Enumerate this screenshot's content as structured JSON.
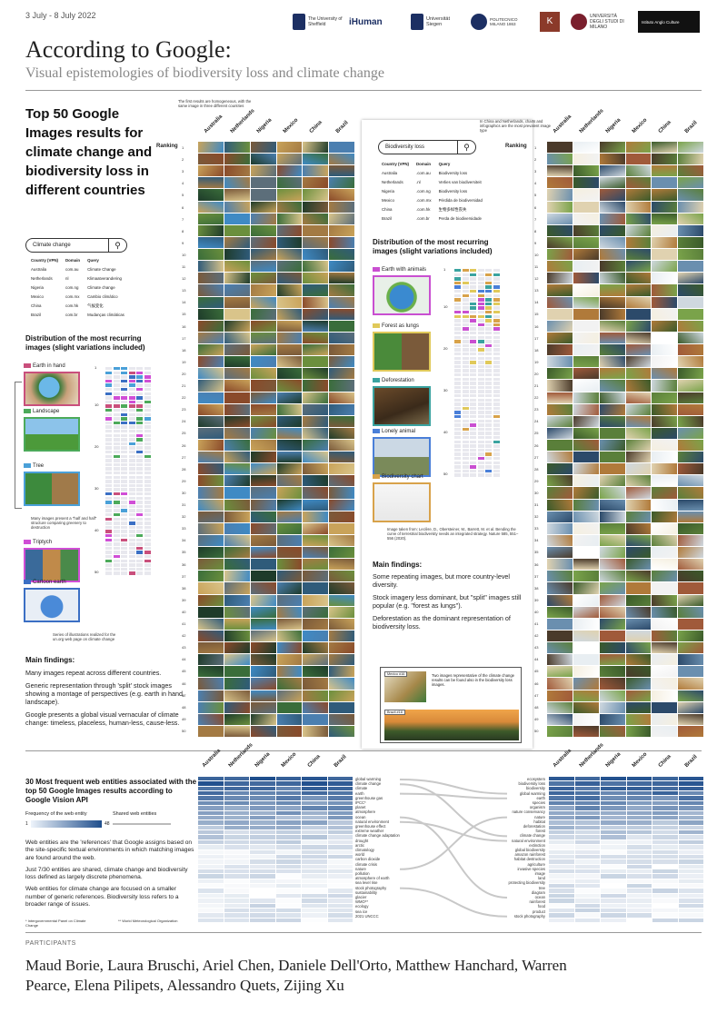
{
  "header": {
    "date": "3 July - 8 July 2022",
    "logos": [
      "The University of Sheffield",
      "iHuman",
      "Universität Siegen",
      "POLITECNICO MILANO 1863",
      "K",
      "UNIVERSITÀ DEGLI STUDI DI MILANO",
      "Istituto Anglo Culture"
    ],
    "title": "According to Google:",
    "subtitle": "Visual epistemologies of biodiversity loss and climate change"
  },
  "left": {
    "heading": "Top 50 Google Images results for climate change and biodiversity loss in different countries",
    "search_value": "Climate change",
    "table_headers": [
      "Country (VPN)",
      "Domain",
      "Query"
    ],
    "table_rows": [
      [
        "Australia",
        "com.au",
        "Climate Change"
      ],
      [
        "Netherlands",
        "nl",
        "Klimaatverandering"
      ],
      [
        "Nigeria",
        "com.ng",
        "Climate change"
      ],
      [
        "Mexico",
        "com.mx",
        "Cambio climático"
      ],
      [
        "China",
        "com.hk",
        "气候变化"
      ],
      [
        "Brazil",
        "com.br",
        "Mudanças climáticas"
      ]
    ],
    "distribution_heading": "Distribution of the most recurring images (slight variations included)",
    "categories": [
      "Earth in hand",
      "Landscape",
      "Tree",
      "Triptych",
      "Cartoon earth"
    ],
    "category_colors": [
      "#c94f7c",
      "#4caa5a",
      "#4aa0d8",
      "#d04ed6",
      "#3b6fc4"
    ],
    "note_split": "Many images present a \"half and half\" structure comparing greenery to destruction",
    "note_cartoon": "Series of illustrations realized for the un.org web page on climate change",
    "dist_ticks": [
      "1",
      "10",
      "20",
      "30",
      "40",
      "50"
    ],
    "findings_heading": "Main findings:",
    "findings": [
      "Many images repeat across different countries.",
      "Generic representation through 'split' stock images showing a montage of perspectives (e.g. earth in hand, landscape).",
      "Google presents a global visual vernacular of climate change: timeless, placeless, human-less, cause-less."
    ]
  },
  "cc_grid": {
    "note": "The first results are homogeneous, with the same image in three different countries",
    "ranking_label": "Ranking",
    "countries": [
      "Australia",
      "Netherlands",
      "Nigeria",
      "Mexico",
      "China",
      "Brazil"
    ],
    "ranks": [
      "1",
      "2",
      "3",
      "4",
      "5",
      "6",
      "7",
      "8",
      "9",
      "10",
      "11",
      "12",
      "13",
      "14",
      "15",
      "16",
      "17",
      "18",
      "19",
      "20",
      "21",
      "22",
      "23",
      "24",
      "25",
      "26",
      "27",
      "28",
      "29",
      "30",
      "31",
      "32",
      "33",
      "34",
      "35",
      "36",
      "37",
      "38",
      "39",
      "40",
      "41",
      "42",
      "43",
      "44",
      "45",
      "46",
      "47",
      "48",
      "49",
      "50"
    ]
  },
  "bio": {
    "search_value": "Biodiversity loss",
    "table_headers": [
      "Country (VPN)",
      "Domain",
      "Query"
    ],
    "table_rows": [
      [
        "Australia",
        ".com.au",
        "Biodiversity loss"
      ],
      [
        "Netherlands",
        ".nl",
        "Verlies van biodiversiteit"
      ],
      [
        "Nigeria",
        ".com.ng",
        "Biodiversity loss"
      ],
      [
        "Mexico",
        ".com.mx",
        "Pérdida de biodiversidad"
      ],
      [
        "China",
        ".com.hk",
        "生物多样性丧失"
      ],
      [
        "Brazil",
        ".com.br",
        "Perda de biodiversidade"
      ]
    ],
    "distribution_heading": "Distribution of the most recurring images (slight variations included)",
    "categories": [
      "Earth with animals",
      "Forest as lungs",
      "Deforestation",
      "Lonely animal",
      "Biodiversity chart"
    ],
    "category_colors": [
      "#c94fd1",
      "#e0c95a",
      "#3aa3a0",
      "#4a7fd8",
      "#d8a24a"
    ],
    "dist_ticks": [
      "1",
      "10",
      "20",
      "30",
      "40",
      "50"
    ],
    "chart_caption": "Image taken from: Leclère, D., Obersteiner, M., Barrett, M. et al. Bending the curve of terrestrial biodiversity needs an integrated strategy. Nature 585, 551–556 (2020).",
    "findings_heading": "Main findings:",
    "findings": [
      "Some repeating images, but more country-level diversity.",
      "Stock imagery less dominant, but \"split\" images still popular (e.g. \"forest as lungs\").",
      "Deforestation as the dominant representation of biodiversity loss."
    ],
    "callout_mexico": "Mexico #16",
    "callout_brazil": "Brazil #18",
    "callout_text": "Two images representative of the climate change results can be found also in the biodiversity loss images."
  },
  "bio_grid": {
    "note": "In China and Netherlands, charts and infographics are the most prevalent image type",
    "ranking_label": "Ranking",
    "countries": [
      "Australia",
      "Netherlands",
      "Nigeria",
      "Mexico",
      "China",
      "Brazil"
    ]
  },
  "entities": {
    "heading": "30 Most frequent web entities associated with the top 50 Google Images results according to Google Vision API",
    "freq_label": "Frequency of the web entity",
    "freq_min": "1",
    "freq_max": "48",
    "shared_label": "Shared web entities",
    "countries": [
      "Australia",
      "Netherlands",
      "Nigeria",
      "Mexico",
      "China",
      "Brazil"
    ],
    "text": [
      "Web entities are the 'references' that Google assigns based on the site-specific textual environments in which matching images are found around the web.",
      "Just 7/30 entities are shared, climate change and biodiversity loss defined as largely discrete phenomena.",
      "Web entities for climate change are focused on a smaller number of generic references. Biodiversity loss refers to a broader range of issues."
    ],
    "footnote_ipcc": "* Intergovernmental Panel on Climate Change",
    "footnote_wmo": "** World Meteorological Organization",
    "cc_entities": [
      "global warming",
      "climate change",
      "climate",
      "earth",
      "greenhouse gas",
      "IPCC*",
      "planet",
      "atmosphere",
      "ocean",
      "natural environment",
      "greenhouse effect",
      "extreme weather",
      "climate change adaptation",
      "drought",
      "arctic",
      "climatology",
      "world",
      "carbon dioxide",
      "climate crisis",
      "nature",
      "pollution",
      "atmosphere of earth",
      "sea level rise",
      "stock photography",
      "sustainability",
      "glacier",
      "WMO**",
      "ecology",
      "sea ice",
      "2021 UNCCC"
    ],
    "bio_entities": [
      "ecosystem",
      "biodiversity loss",
      "biodiversity",
      "global warming",
      "earth",
      "species",
      "organism",
      "nature conservancy",
      "nature",
      "habitat",
      "deforestation",
      "forest",
      "climate change",
      "natural environment",
      "extinction",
      "global biodiversity",
      "amazon rainforest",
      "habitat destruction",
      "agriculture",
      "invasive species",
      "image",
      "land",
      "protecting biodiversity",
      "tree",
      "diagram",
      "ocean",
      "rainforest",
      "food",
      "product",
      "stock photography"
    ]
  },
  "participants": {
    "label": "PARTICIPANTS",
    "names": "Maud Borie, Laura Bruschi, Ariel Chen, Daniele Dell'Orto, Matthew Hanchard, Warren Pearce, Elena Pilipets, Alessandro Quets, Zijing Xu"
  }
}
